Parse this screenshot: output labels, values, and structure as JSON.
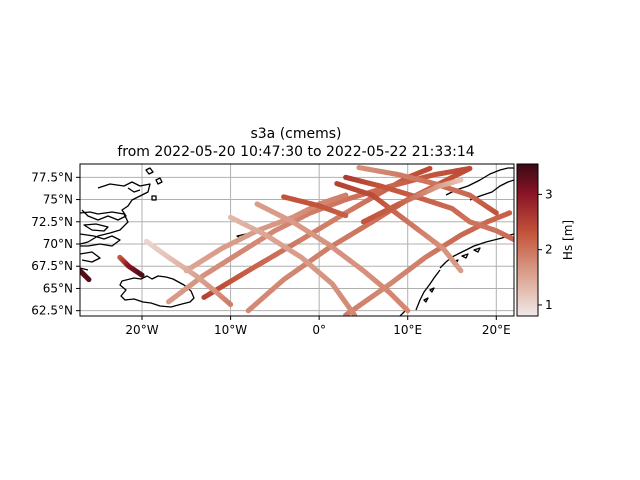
{
  "title": {
    "line1": "s3a (cmems)",
    "line2": "from 2022-05-20 10:47:30 to 2022-05-22 21:33:14"
  },
  "colorbar": {
    "label": "Hs [m]",
    "ticks": [
      "1",
      "2",
      "3"
    ],
    "tick_values": [
      1,
      2,
      3
    ],
    "range": [
      0.8,
      3.55
    ],
    "colors": [
      "#f2e9e8",
      "#d89a86",
      "#c3533a",
      "#8b1525",
      "#3a0a14"
    ]
  },
  "chart_data": {
    "type": "map-track",
    "x_ticks": [
      "20°W",
      "10°W",
      "0°",
      "10°E",
      "20°E"
    ],
    "x_tick_values": [
      -20,
      -10,
      0,
      10,
      20
    ],
    "y_ticks": [
      "62.5°N",
      "65°N",
      "67.5°N",
      "70°N",
      "72.5°N",
      "75°N",
      "77.5°N"
    ],
    "y_tick_values": [
      62.5,
      65,
      67.5,
      70,
      72.5,
      75,
      77.5
    ],
    "xlim": [
      -27,
      22
    ],
    "ylim": [
      61.9,
      79
    ],
    "grid": true,
    "tracks": [
      {
        "lon": [
          -8.0,
          -4.0,
          1.0,
          6.0,
          10.0,
          14.0,
          17.0
        ],
        "lat": [
          62.5,
          66.0,
          69.5,
          72.5,
          75.0,
          77.0,
          78.5
        ],
        "hs": [
          1.8,
          1.8,
          1.9,
          2.0,
          2.2,
          2.3,
          2.4
        ]
      },
      {
        "lon": [
          -13.0,
          -8.0,
          -2.0,
          3.0,
          7.0,
          10.0,
          12.5
        ],
        "lat": [
          64.0,
          67.0,
          70.5,
          73.5,
          75.8,
          77.5,
          78.5
        ],
        "hs": [
          2.5,
          2.2,
          1.9,
          1.9,
          2.1,
          2.3,
          2.4
        ]
      },
      {
        "lon": [
          3.0,
          8.0,
          12.0,
          16.0,
          19.0,
          21.5
        ],
        "lat": [
          62.0,
          65.5,
          68.5,
          71.0,
          72.5,
          73.5
        ],
        "hs": [
          1.9,
          1.8,
          1.9,
          2.1,
          2.1,
          2.2
        ]
      },
      {
        "lon": [
          -17.0,
          -13.0,
          -9.0,
          -5.0,
          -1.0,
          3.0,
          8.0,
          13.0,
          17.0
        ],
        "lat": [
          63.5,
          66.5,
          69.0,
          71.5,
          73.5,
          75.0,
          76.5,
          77.8,
          78.5
        ],
        "hs": [
          1.6,
          1.7,
          1.8,
          1.8,
          1.9,
          2.0,
          2.1,
          2.3,
          2.4
        ]
      },
      {
        "lon": [
          -15.0,
          -11.0,
          -7.0,
          -3.0,
          0.0,
          3.0
        ],
        "lat": [
          67.0,
          69.5,
          71.5,
          73.0,
          74.5,
          75.5
        ],
        "hs": [
          1.5,
          1.6,
          1.6,
          1.7,
          1.8,
          1.9
        ]
      },
      {
        "lon": [
          -19.5,
          -17.0,
          -14.0,
          -11.5,
          -10.0
        ],
        "lat": [
          70.3,
          68.5,
          66.5,
          64.5,
          63.2
        ],
        "hs": [
          1.0,
          1.2,
          1.5,
          1.7,
          1.9
        ]
      },
      {
        "lon": [
          -10.0,
          -6.0,
          -2.0,
          1.5,
          4.0
        ],
        "lat": [
          73.0,
          71.0,
          68.5,
          65.5,
          62.0
        ],
        "hs": [
          1.3,
          1.5,
          1.6,
          1.7,
          1.8
        ]
      },
      {
        "lon": [
          -7.0,
          -3.0,
          1.0,
          5.0,
          8.0,
          10.0
        ],
        "lat": [
          74.5,
          72.5,
          70.0,
          67.0,
          64.5,
          62.5
        ],
        "hs": [
          1.6,
          1.6,
          1.7,
          1.7,
          1.8,
          1.8
        ]
      },
      {
        "lon": [
          -4.0,
          0.0,
          3.0
        ],
        "lat": [
          75.3,
          74.3,
          73.2
        ],
        "hs": [
          2.3,
          2.3,
          2.2
        ]
      },
      {
        "lon": [
          2.0,
          6.0,
          10.0,
          14.0,
          16.0
        ],
        "lat": [
          76.8,
          75.5,
          72.5,
          69.5,
          67.0
        ],
        "hs": [
          2.5,
          2.4,
          2.0,
          1.7,
          1.6
        ]
      },
      {
        "lon": [
          3.0,
          7.0,
          11.0,
          15.0,
          17.0,
          20.0,
          22.0
        ],
        "lat": [
          77.5,
          76.5,
          75.3,
          74.0,
          72.5,
          71.5,
          70.5
        ],
        "hs": [
          2.6,
          2.3,
          2.2,
          2.1,
          2.0,
          2.0,
          2.1
        ]
      },
      {
        "lon": [
          4.5,
          9.0,
          13.0,
          17.0,
          20.0
        ],
        "lat": [
          78.6,
          77.8,
          76.8,
          75.5,
          73.5
        ],
        "hs": [
          1.7,
          1.9,
          2.0,
          2.1,
          2.3
        ]
      },
      {
        "lon": [
          5.0,
          9.0,
          13.5,
          16.0
        ],
        "lat": [
          72.5,
          74.5,
          76.5,
          77.2
        ],
        "hs": [
          2.3,
          2.2,
          1.6,
          1.2
        ]
      },
      {
        "lon": [
          -22.5,
          -21.5,
          -20.0
        ],
        "lat": [
          68.5,
          67.5,
          66.5
        ],
        "hs": [
          2.2,
          3.0,
          3.4
        ]
      },
      {
        "lon": [
          -27.0,
          -26.0
        ],
        "lat": [
          67.0,
          66.0
        ],
        "hs": [
          3.3,
          3.4
        ]
      }
    ]
  }
}
